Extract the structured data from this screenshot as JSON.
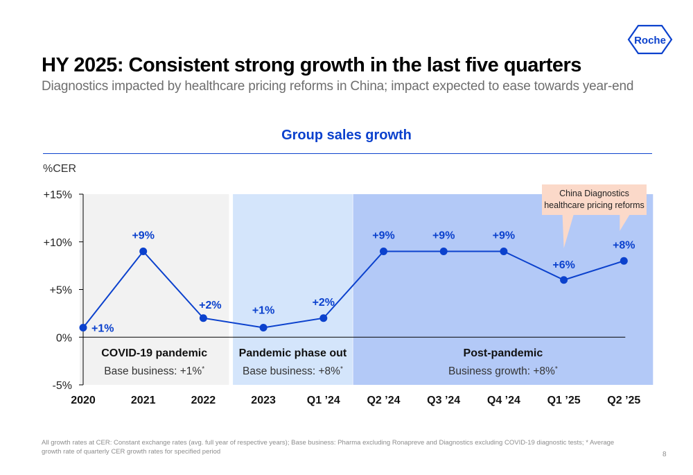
{
  "header": {
    "title": "HY 2025: Consistent strong growth in the last five quarters",
    "subtitle": "Diagnostics impacted by healthcare pricing reforms in China; impact expected to ease towards year-end",
    "logo_text": "Roche"
  },
  "colors": {
    "accent": "#0b41cd",
    "covid_band": "#f2f2f2",
    "phase_out_band": "#d4e5fb",
    "post_pandemic_band": "#b3c9f7",
    "callout": "#fbd9c9"
  },
  "chart_data": {
    "type": "line",
    "title": "Group sales growth",
    "ylabel": "%CER",
    "categories": [
      "2020",
      "2021",
      "2022",
      "2023",
      "Q1 ’24",
      "Q2 ’24",
      "Q3 ’24",
      "Q4 ’24",
      "Q1 ’25",
      "Q2 ’25"
    ],
    "values": [
      1,
      9,
      2,
      1,
      2,
      9,
      9,
      9,
      6,
      8
    ],
    "data_labels": [
      "+1%",
      "+9%",
      "+2%",
      "+1%",
      "+2%",
      "+9%",
      "+9%",
      "+9%",
      "+6%",
      "+8%"
    ],
    "ylim": [
      -5,
      15
    ],
    "yticks": [
      {
        "value": 15,
        "label": "+15%"
      },
      {
        "value": 10,
        "label": "+10%"
      },
      {
        "value": 5,
        "label": "+5%"
      },
      {
        "value": 0,
        "label": "0%"
      },
      {
        "value": -5,
        "label": "-5%"
      }
    ],
    "periods": [
      {
        "name": "COVID-19 pandemic",
        "detail": "Base business: +1%",
        "mark": "*",
        "from": 0,
        "to": 2
      },
      {
        "name": "Pandemic phase out",
        "detail": "Base business: +8%",
        "mark": "*",
        "from": 3,
        "to": 4
      },
      {
        "name": "Post-pandemic",
        "detail": "Business growth: +8%",
        "mark": "*",
        "from": 5,
        "to": 9
      }
    ],
    "callout": {
      "lines": [
        "China Diagnostics",
        "healthcare pricing reforms"
      ],
      "points_to": [
        8,
        9
      ]
    }
  },
  "footer": {
    "footnote": "All growth rates at CER: Constant exchange rates (avg. full year of respective years); Base business: Pharma excluding Ronapreve and Diagnostics excluding COVID-19 diagnostic tests; * Average growth rate of quarterly CER growth rates for specified period",
    "page_number": "8"
  }
}
